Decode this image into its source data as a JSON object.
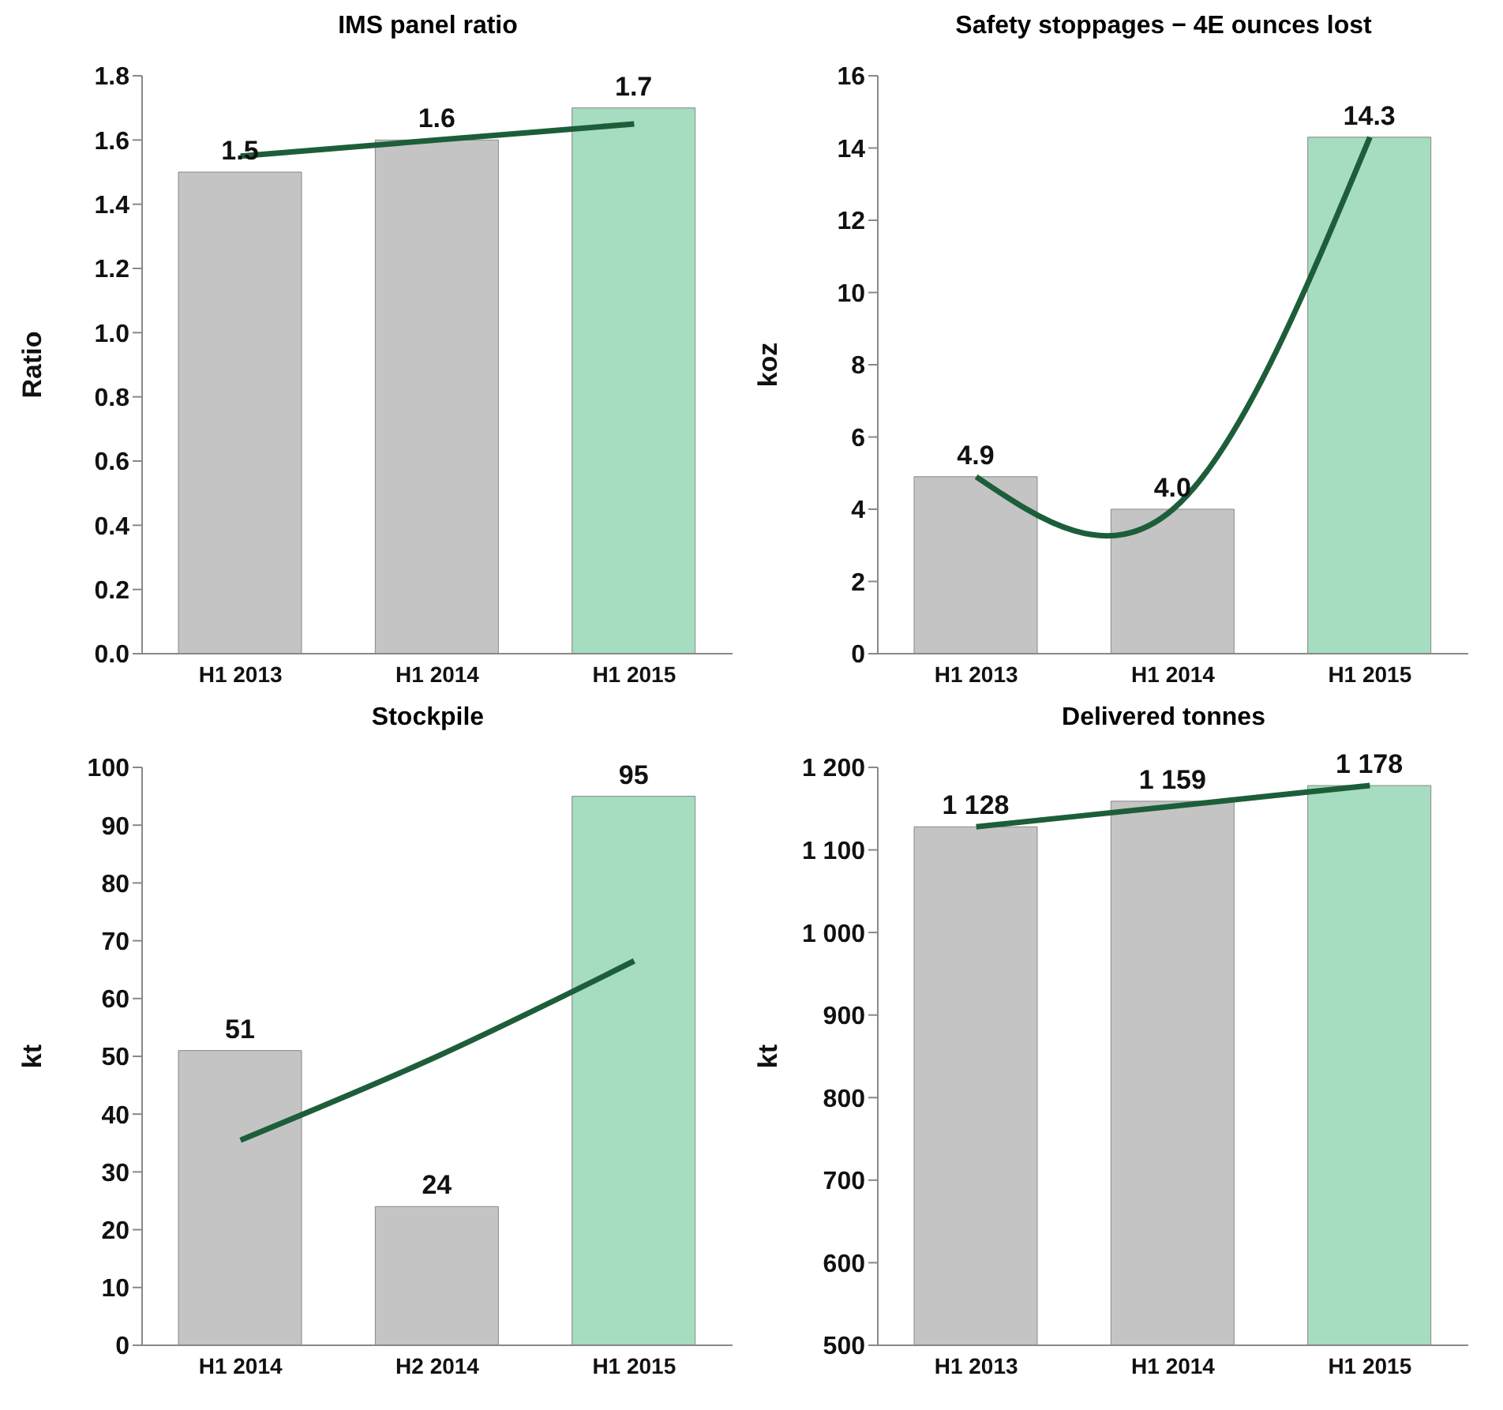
{
  "chart_data": [
    {
      "type": "bar",
      "title": "IMS panel ratio",
      "ylabel": "Ratio",
      "categories": [
        "H1 2013",
        "H1 2014",
        "H1 2015"
      ],
      "ylim": [
        0,
        1.8
      ],
      "yticks": [
        {
          "value": 0,
          "label": "0.0"
        },
        {
          "value": 0.2,
          "label": "0.2"
        },
        {
          "value": 0.4,
          "label": "0.4"
        },
        {
          "value": 0.6,
          "label": "0.6"
        },
        {
          "value": 0.8,
          "label": "0.8"
        },
        {
          "value": 1,
          "label": "1.0"
        },
        {
          "value": 1.2,
          "label": "1.2"
        },
        {
          "value": 1.4,
          "label": "1.4"
        },
        {
          "value": 1.6,
          "label": "1.6"
        },
        {
          "value": 1.8,
          "label": "1.8"
        }
      ],
      "grid": false,
      "legend": false,
      "series": [
        {
          "colors": [
            "#c4c4c4",
            "#c4c4c4",
            "#a6dcbf"
          ],
          "values": [
            1.5,
            1.6,
            1.7
          ],
          "value_labels": [
            "1.5",
            "1.6",
            "1.7"
          ]
        },
        {
          "type": "line",
          "color": "#1d5e3a",
          "values": [
            1.55,
            1.6,
            1.65
          ]
        }
      ]
    },
    {
      "type": "bar",
      "title": "Safety stoppages − 4E ounces lost",
      "ylabel": "koz",
      "categories": [
        "H1 2013",
        "H1 2014",
        "H1 2015"
      ],
      "ylim": [
        0,
        16
      ],
      "yticks": [
        0,
        2,
        4,
        6,
        8,
        10,
        12,
        14,
        16
      ],
      "grid": false,
      "legend": false,
      "series": [
        {
          "colors": [
            "#c4c4c4",
            "#c4c4c4",
            "#a6dcbf"
          ],
          "values": [
            4.9,
            4.0,
            14.3
          ],
          "value_labels": [
            "4.9",
            "4.0",
            "14.3"
          ]
        },
        {
          "type": "line",
          "color": "#1d5e3a",
          "values": [
            4.9,
            4.0,
            14.3
          ]
        }
      ]
    },
    {
      "type": "bar",
      "title": "Stockpile",
      "ylabel": "kt",
      "categories": [
        "H1 2014",
        "H2 2014",
        "H1 2015"
      ],
      "ylim": [
        0,
        100
      ],
      "yticks": [
        0,
        10,
        20,
        30,
        40,
        50,
        60,
        70,
        80,
        90,
        100
      ],
      "grid": false,
      "legend": false,
      "series": [
        {
          "colors": [
            "#c4c4c4",
            "#c4c4c4",
            "#a6dcbf"
          ],
          "values": [
            51,
            24,
            95
          ],
          "value_labels": [
            "51",
            "24",
            "95"
          ]
        },
        {
          "type": "line",
          "color": "#1d5e3a",
          "values": [
            35.5,
            50,
            66.5
          ]
        }
      ]
    },
    {
      "type": "bar",
      "title": "Delivered tonnes",
      "ylabel": "kt",
      "categories": [
        "H1 2013",
        "H1 2014",
        "H1 2015"
      ],
      "ylim": [
        500,
        1200
      ],
      "yticks": [
        500,
        600,
        700,
        800,
        900,
        {
          "value": 1000,
          "label": "1 000"
        },
        {
          "value": 1100,
          "label": "1 100"
        },
        {
          "value": 1200,
          "label": "1 200"
        }
      ],
      "grid": false,
      "legend": false,
      "series": [
        {
          "colors": [
            "#c4c4c4",
            "#c4c4c4",
            "#a6dcbf"
          ],
          "values": [
            1128,
            1159,
            1178
          ],
          "value_labels": [
            "1 128",
            "1 159",
            "1 178"
          ]
        },
        {
          "type": "line",
          "color": "#1d5e3a",
          "values": [
            1128,
            1153,
            1178
          ]
        }
      ]
    }
  ]
}
